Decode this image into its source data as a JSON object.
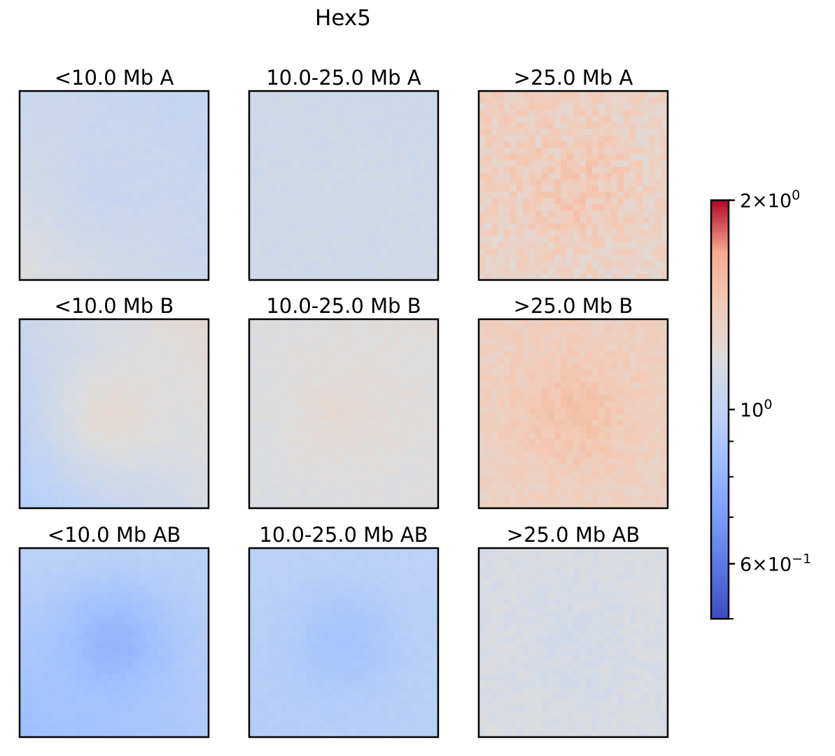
{
  "chart_data": {
    "type": "heatmap",
    "title": "Hex5",
    "grid": false,
    "colormap": "coolwarm",
    "color_scale": "log",
    "clim": [
      0.5,
      2.0
    ],
    "colorbar": {
      "placement": "right",
      "ticks": [
        {
          "value": 2.0,
          "base": "2×10",
          "exp": "0"
        },
        {
          "value": 1.0,
          "base": "10",
          "exp": "0"
        },
        {
          "value": 0.6,
          "base": "6×10",
          "exp": "−1"
        }
      ],
      "minor_ticks": [
        0.9,
        0.8,
        0.7
      ]
    },
    "panels": [
      {
        "title": "<10.0 Mb A",
        "center": 1.04,
        "corner_ll": 1.18,
        "corner_lr": 1.06,
        "corner_ul": 1.06,
        "corner_ur": 1.02,
        "noise": 0.015
      },
      {
        "title": "10.0-25.0 Mb A",
        "center": 1.1,
        "corner_ll": 1.09,
        "corner_lr": 1.1,
        "corner_ul": 1.09,
        "corner_ur": 1.07,
        "noise": 0.02
      },
      {
        "title": ">25.0 Mb A",
        "center": 1.42,
        "corner_ll": 1.32,
        "corner_lr": 1.3,
        "corner_ul": 1.38,
        "corner_ur": 1.32,
        "noise": 0.07
      },
      {
        "title": "<10.0 Mb B",
        "center": 1.24,
        "corner_ll": 0.94,
        "corner_lr": 1.14,
        "corner_ul": 1.06,
        "corner_ur": 1.24,
        "noise": 0.015
      },
      {
        "title": "10.0-25.0 Mb B",
        "center": 1.24,
        "corner_ll": 1.16,
        "corner_lr": 1.18,
        "corner_ul": 1.18,
        "corner_ur": 1.2,
        "noise": 0.02
      },
      {
        "title": ">25.0 Mb B",
        "center": 1.48,
        "corner_ll": 1.34,
        "corner_lr": 1.34,
        "corner_ul": 1.36,
        "corner_ur": 1.36,
        "noise": 0.04
      },
      {
        "title": "<10.0 Mb AB",
        "center": 0.8,
        "corner_ll": 0.84,
        "corner_lr": 0.92,
        "corner_ul": 0.98,
        "corner_ur": 0.97,
        "noise": 0.01
      },
      {
        "title": "10.0-25.0 Mb AB",
        "center": 0.88,
        "corner_ll": 0.94,
        "corner_lr": 0.96,
        "corner_ul": 0.98,
        "corner_ur": 0.98,
        "noise": 0.012
      },
      {
        "title": ">25.0 Mb AB",
        "center": 1.12,
        "corner_ll": 1.15,
        "corner_lr": 1.15,
        "corner_ul": 1.15,
        "corner_ur": 1.15,
        "noise": 0.03
      }
    ]
  }
}
